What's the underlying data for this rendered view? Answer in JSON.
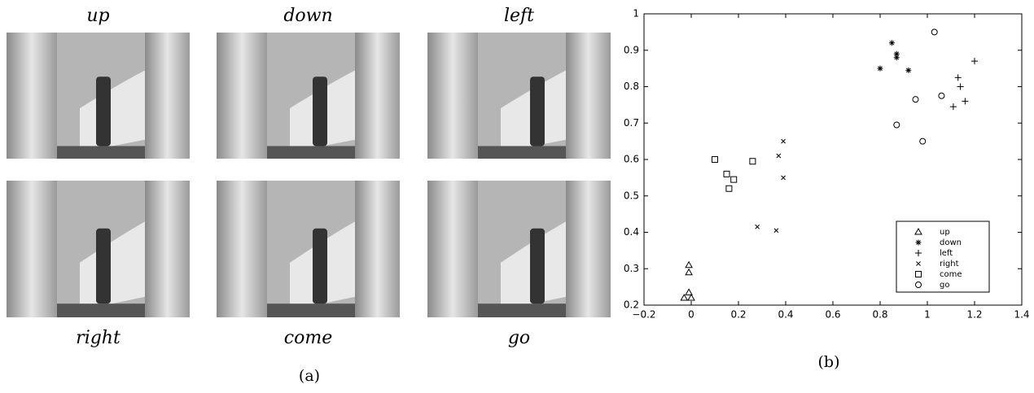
{
  "panel_a": {
    "labels": [
      "up",
      "down",
      "left",
      "right",
      "come",
      "go"
    ],
    "caption": "(a)"
  },
  "chart_data": {
    "type": "scatter",
    "caption": "(b)",
    "xlim": [
      -0.2,
      1.4
    ],
    "ylim": [
      0.2,
      1.0
    ],
    "xticks": [
      {
        "value": -0.2,
        "label": "−0.2"
      },
      0,
      0.2,
      0.4,
      0.6,
      0.8,
      1,
      1.2,
      1.4
    ],
    "yticks": [
      0.2,
      0.3,
      0.4,
      0.5,
      0.6,
      0.7,
      0.8,
      0.9,
      1
    ],
    "legend": "lower right",
    "series": [
      {
        "name": "up",
        "marker": "triangle",
        "color": "#000000",
        "x": [
          -0.01,
          -0.01,
          -0.01,
          -0.03,
          0.0
        ],
        "values": [
          0.31,
          0.29,
          0.235,
          0.22,
          0.22
        ]
      },
      {
        "name": "down",
        "marker": "asterisk",
        "color": "#000000",
        "x": [
          0.85,
          0.8,
          0.87,
          0.87,
          0.92
        ],
        "values": [
          0.92,
          0.85,
          0.89,
          0.88,
          0.845
        ]
      },
      {
        "name": "left",
        "marker": "plus",
        "color": "#000000",
        "x": [
          1.2,
          1.13,
          1.14,
          1.16,
          1.11
        ],
        "values": [
          0.87,
          0.825,
          0.8,
          0.76,
          0.745
        ]
      },
      {
        "name": "right",
        "marker": "cross",
        "color": "#000000",
        "x": [
          0.39,
          0.37,
          0.39,
          0.28,
          0.36
        ],
        "values": [
          0.65,
          0.61,
          0.55,
          0.415,
          0.405
        ]
      },
      {
        "name": "come",
        "marker": "square",
        "color": "#000000",
        "x": [
          0.1,
          0.15,
          0.18,
          0.16,
          0.26
        ],
        "values": [
          0.6,
          0.56,
          0.545,
          0.52,
          0.595
        ]
      },
      {
        "name": "go",
        "marker": "circle",
        "color": "#000000",
        "x": [
          1.03,
          1.06,
          0.95,
          0.87,
          0.98
        ],
        "values": [
          0.95,
          0.775,
          0.765,
          0.695,
          0.65
        ]
      }
    ]
  }
}
